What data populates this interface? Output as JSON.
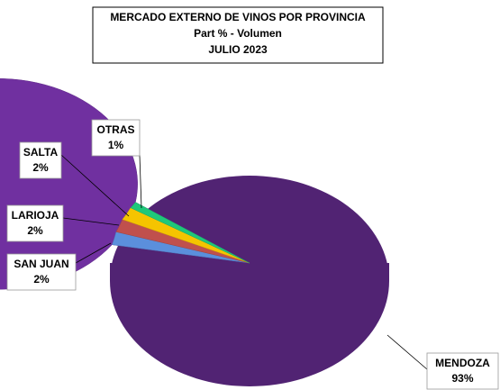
{
  "chart_data": {
    "type": "pie",
    "title": "MERCADO EXTERNO DE VINOS POR PROVINCIA",
    "subtitle": "Part % - Volumen",
    "period": "JULIO 2023",
    "categories": [
      "MENDOZA",
      "SAN JUAN",
      "LARIOJA",
      "SALTA",
      "OTRAS"
    ],
    "values": [
      93,
      2,
      2,
      2,
      1
    ],
    "value_labels": [
      "93%",
      "2%",
      "2%",
      "2%",
      "1%"
    ],
    "colors": [
      "#7030a0",
      "#5b8fdc",
      "#c0504d",
      "#f5c400",
      "#1fc87a"
    ]
  }
}
